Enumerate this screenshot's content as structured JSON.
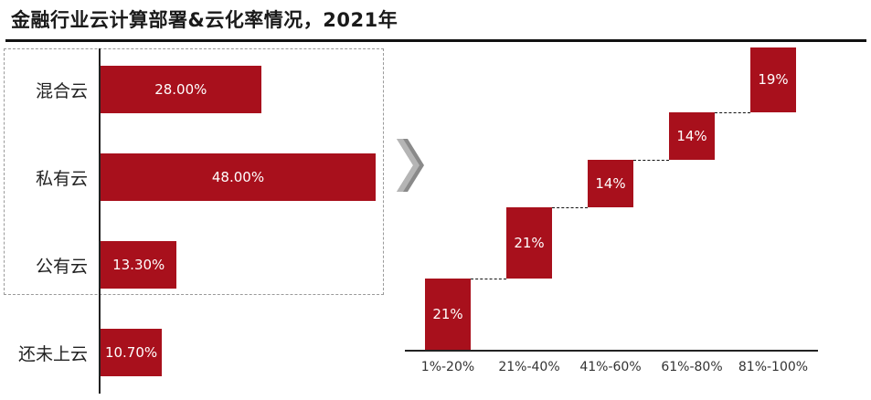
{
  "title": "金融行业云计算部署&云化率情况，2021年",
  "colors": {
    "bar": "#a8101c",
    "text": "#222222"
  },
  "chart_data": [
    {
      "type": "bar",
      "orientation": "horizontal",
      "categories": [
        "混合云",
        "私有云",
        "公有云",
        "还未上云"
      ],
      "values": [
        28.0,
        48.0,
        13.3,
        10.7
      ],
      "data_labels": [
        "28.00%",
        "48.00%",
        "13.30%",
        "10.70%"
      ],
      "unit": "%",
      "xlim": [
        0,
        48
      ]
    },
    {
      "type": "bar",
      "subtype": "waterfall",
      "categories": [
        "1%-20%",
        "21%-40%",
        "41%-60%",
        "61%-80%",
        "81%-100%"
      ],
      "values": [
        21,
        21,
        14,
        14,
        19
      ],
      "data_labels": [
        "21%",
        "21%",
        "14%",
        "14%",
        "19%"
      ],
      "unit": "%",
      "ylim": [
        0,
        89
      ]
    }
  ]
}
